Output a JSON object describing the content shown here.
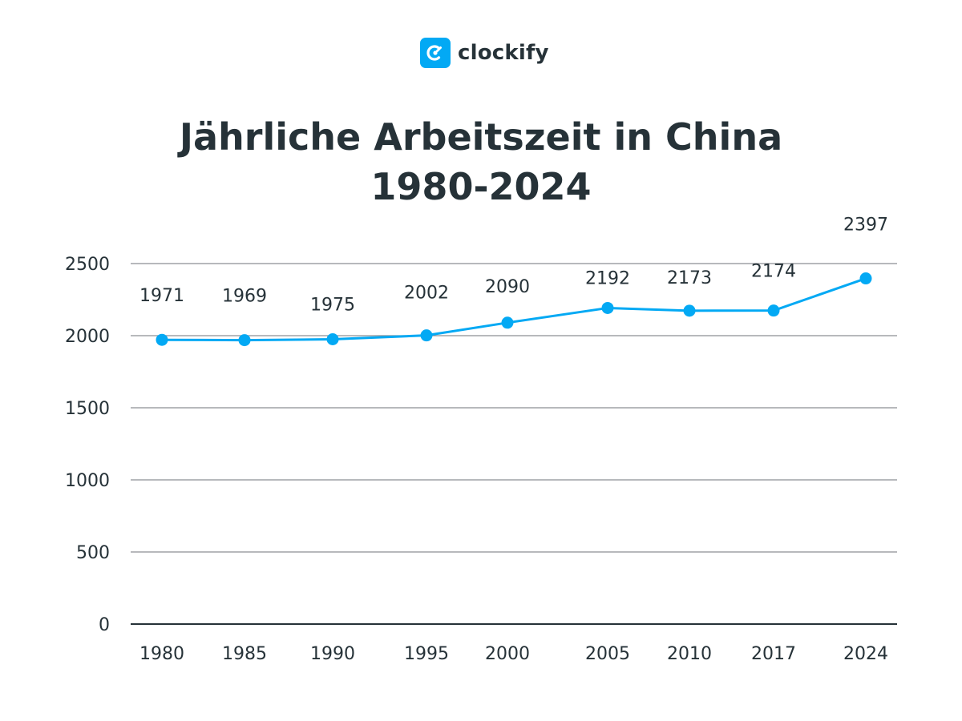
{
  "brand": {
    "name": "clockify",
    "logo_icon": "clockify-logo-icon",
    "accent": "#03A9F4"
  },
  "title": {
    "line1": "Jährliche Arbeitszeit in China",
    "line2": "1980-2024"
  },
  "chart_data": {
    "type": "line",
    "title": "Jährliche Arbeitszeit in China 1980-2024",
    "xlabel": "",
    "ylabel": "",
    "categories": [
      "1980",
      "1985",
      "1990",
      "1995",
      "2000",
      "2005",
      "2010",
      "2017",
      "2024"
    ],
    "series": [
      {
        "values": [
          1971,
          1969,
          1975,
          2002,
          2090,
          2192,
          2173,
          2174,
          2397
        ],
        "color": "#03A9F4"
      }
    ],
    "data_labels": [
      "1971",
      "1969",
      "1975",
      "2002",
      "2090",
      "2192",
      "2173",
      "2174",
      "2397"
    ],
    "ylim": [
      0,
      2500
    ],
    "yticks": [
      0,
      500,
      1000,
      1500,
      2000,
      2500
    ],
    "grid": true,
    "legend": "none",
    "colors": {
      "line": "#03A9F4",
      "grid": "#8c8f93",
      "axis": "#263238",
      "text": "#263238"
    }
  }
}
